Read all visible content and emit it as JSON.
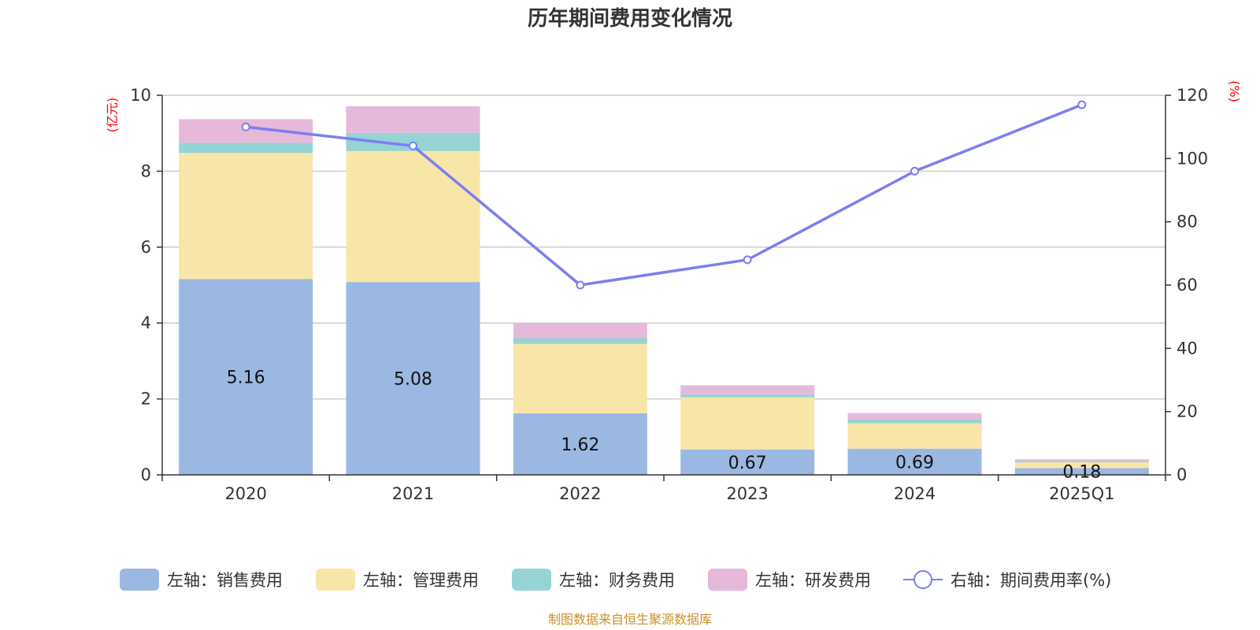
{
  "chart_data": {
    "type": "bar",
    "title": "历年期间费用变化情况",
    "categories": [
      "2020",
      "2021",
      "2022",
      "2023",
      "2024",
      "2025Q1"
    ],
    "y_left": {
      "unit": "(亿元)",
      "ylim": [
        0,
        10
      ],
      "ticks": [
        0,
        2,
        4,
        6,
        8,
        10
      ]
    },
    "y_right": {
      "unit": "(%)",
      "ylim": [
        0,
        120
      ],
      "ticks": [
        0,
        20,
        40,
        60,
        80,
        100,
        120
      ]
    },
    "stacked": true,
    "series": [
      {
        "name": "左轴：销售费用",
        "axis": "left",
        "type": "bar",
        "color": "#9bb8e2",
        "values": [
          5.16,
          5.08,
          1.62,
          0.67,
          0.69,
          0.18
        ],
        "labels": [
          "5.16",
          "5.08",
          "1.62",
          "0.67",
          "0.69",
          "0.18"
        ]
      },
      {
        "name": "左轴：管理费用",
        "axis": "left",
        "type": "bar",
        "color": "#f8e6a8",
        "values": [
          3.32,
          3.45,
          1.83,
          1.37,
          0.67,
          0.15
        ]
      },
      {
        "name": "左轴：财务费用",
        "axis": "left",
        "type": "bar",
        "color": "#95d3d4",
        "values": [
          0.27,
          0.48,
          0.15,
          0.08,
          0.1,
          0.03
        ]
      },
      {
        "name": "左轴：研发费用",
        "axis": "left",
        "type": "bar",
        "color": "#e6b9da",
        "values": [
          0.62,
          0.7,
          0.39,
          0.24,
          0.17,
          0.05
        ]
      },
      {
        "name": "右轴：期间费用率(%)",
        "axis": "right",
        "type": "line",
        "color": "#7b7ff0",
        "values": [
          110,
          104,
          60,
          68,
          96,
          117
        ]
      }
    ],
    "grid": true,
    "legend_position": "bottom"
  },
  "footer": "制图数据来自恒生聚源数据库"
}
